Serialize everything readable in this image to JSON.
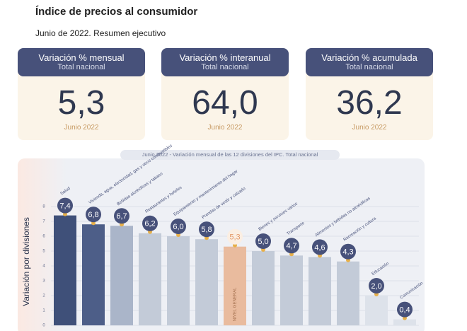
{
  "header": {
    "title": "Índice de precios al consumidor",
    "subtitle": "Junio de 2022. Resumen ejecutivo"
  },
  "cards": [
    {
      "title": "Variación % mensual",
      "subtitle": "Total nacional",
      "value": "5,3",
      "footer": "Junio 2022"
    },
    {
      "title": "Variación % interanual",
      "subtitle": "Total nacional",
      "value": "64,0",
      "footer": "Junio 2022"
    },
    {
      "title": "Variación % acumulada",
      "subtitle": "Total nacional",
      "value": "36,2",
      "footer": "Junio 2022"
    }
  ],
  "chart_data": {
    "type": "bar",
    "title": "Junio 2022 - Variación mensual de las 12 divisiones del IPC. Total nacional",
    "y_label": "Variación por divisiones",
    "categories": [
      "Salud",
      "Vivienda, agua, electricidad, gas y otros combustibles",
      "Bebidas alcohólicas y tabaco",
      "Restaurantes y hoteles",
      "Equipamiento y mantenimiento del hogar",
      "Prendas de vestir y calzado",
      "NIVEL GENERAL",
      "Bienes y servicios varios",
      "Transporte",
      "Alimentos y bebidas no alcohólicas",
      "Recreación y cultura",
      "Educación",
      "Comunicación"
    ],
    "values": [
      7.4,
      6.8,
      6.7,
      6.2,
      6.0,
      5.8,
      5.3,
      5.0,
      4.7,
      4.6,
      4.3,
      2.0,
      0.4
    ],
    "value_labels": [
      "7,4",
      "6,8",
      "6,7",
      "6,2",
      "6,0",
      "5,8",
      "5,3",
      "5,0",
      "4,7",
      "4,6",
      "4,3",
      "2,0",
      "0,4"
    ],
    "colors": [
      "#3f5079",
      "#4d5e88",
      "#aab5c9",
      "#c3cbd8",
      "#c3cbd8",
      "#c3cbd8",
      "#e9bb9e",
      "#c3cbd8",
      "#c3cbd8",
      "#c3cbd8",
      "#c3cbd8",
      "#dde2ea",
      "#dde2ea"
    ],
    "highlight_index": 6,
    "ylim": [
      0,
      8
    ],
    "yticks": [
      0,
      1,
      2,
      3,
      4,
      5,
      6,
      7,
      8
    ],
    "grid": true
  }
}
